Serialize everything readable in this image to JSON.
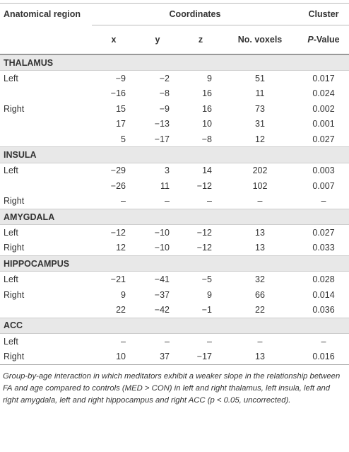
{
  "header": {
    "region": "Anatomical region",
    "coordinates": "Coordinates",
    "cluster": "Cluster",
    "sub": [
      "x",
      "y",
      "z",
      "No. voxels"
    ],
    "pvalue": {
      "italic": "P",
      "rest": "-Value"
    }
  },
  "sections": [
    {
      "name": "THALAMUS",
      "rows": [
        {
          "region": "Left",
          "cells": [
            "−9",
            "−2",
            "9",
            "51",
            "0.017"
          ]
        },
        {
          "cells": [
            "−16",
            "−8",
            "16",
            "11",
            "0.024"
          ]
        },
        {
          "region": "Right",
          "cells": [
            "15",
            "−9",
            "16",
            "73",
            "0.002"
          ]
        },
        {
          "cells": [
            "17",
            "−13",
            "10",
            "31",
            "0.001"
          ]
        },
        {
          "cells": [
            "5",
            "−17",
            "−8",
            "12",
            "0.027"
          ]
        }
      ]
    },
    {
      "name": "INSULA",
      "rows": [
        {
          "region": "Left",
          "cells": [
            "−29",
            "3",
            "14",
            "202",
            "0.003"
          ]
        },
        {
          "cells": [
            "−26",
            "11",
            "−12",
            "102",
            "0.007"
          ]
        },
        {
          "region": "Right",
          "cells": [
            "–",
            "–",
            "–",
            "–",
            "–"
          ]
        }
      ]
    },
    {
      "name": "AMYGDALA",
      "rows": [
        {
          "region": "Left",
          "cells": [
            "−12",
            "−10",
            "−12",
            "13",
            "0.027"
          ]
        },
        {
          "region": "Right",
          "cells": [
            "12",
            "−10",
            "−12",
            "13",
            "0.033"
          ]
        }
      ]
    },
    {
      "name": "HIPPOCAMPUS",
      "rows": [
        {
          "region": "Left",
          "cells": [
            "−21",
            "−41",
            "−5",
            "32",
            "0.028"
          ]
        },
        {
          "region": "Right",
          "cells": [
            "9",
            "−37",
            "9",
            "66",
            "0.014"
          ]
        },
        {
          "cells": [
            "22",
            "−42",
            "−1",
            "22",
            "0.036"
          ]
        }
      ]
    },
    {
      "name": "ACC",
      "rows": [
        {
          "region": "Left",
          "cells": [
            "–",
            "–",
            "–",
            "–",
            "–"
          ]
        },
        {
          "region": "Right",
          "cells": [
            "10",
            "37",
            "−17",
            "13",
            "0.016"
          ]
        }
      ]
    }
  ],
  "caption": "Group-by-age interaction in which meditators exhibit a weaker slope in the relationship between FA and age compared to controls (MED > CON) in left and right thalamus, left insula, left and right amygdala, left and right hippocampus and right ACC (p < 0.05, uncorrected)."
}
